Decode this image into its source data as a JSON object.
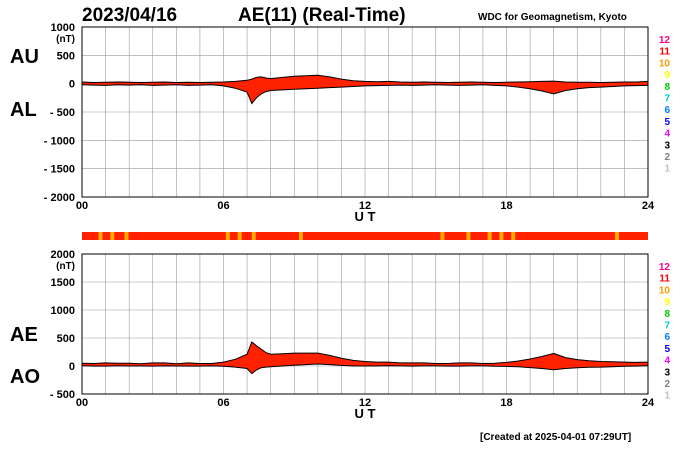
{
  "header": {
    "date": "2023/04/16",
    "title": "AE(11) (Real-Time)",
    "source": "WDC for Geomagnetism, Kyoto"
  },
  "footer": {
    "created": "[Created at 2025-04-01 07:29UT]"
  },
  "colors": {
    "fill": "#ff2200",
    "outline": "#000000",
    "grid": "#9a9a9a",
    "station_scale": [
      "#c0c0c0",
      "#808080",
      "#000000",
      "#ff00ff",
      "#0000ff",
      "#0080ff",
      "#00cccc",
      "#00cc00",
      "#ffff00",
      "#ff9900",
      "#ff0000",
      "#ff0088"
    ],
    "bar_base": "#ff2200",
    "bar_mark": "#ffaa00"
  },
  "station_scale_labels": [
    "12",
    "11",
    "10",
    "9",
    "8",
    "7",
    "6",
    "5",
    "4",
    "3",
    "2",
    "1"
  ],
  "coverage_bar_marks_hours": [
    0.7,
    1.2,
    1.8,
    6.1,
    6.6,
    7.2,
    9.2,
    15.2,
    16.3,
    17.2,
    17.7,
    18.2,
    22.6
  ],
  "chart_data": [
    {
      "type": "area",
      "panel": "upper",
      "unit_label": "(nT)",
      "series_labels": [
        "AU",
        "AL"
      ],
      "xlabel": "U T",
      "xlim": [
        0,
        24
      ],
      "x_ticks": [
        "00",
        "06",
        "12",
        "18",
        "24"
      ],
      "ylim": [
        -2000,
        1000
      ],
      "y_ticks": [
        "1000",
        "500",
        "0",
        "- 500",
        "- 1000",
        "- 1500",
        "- 2000"
      ],
      "grid": true,
      "x": [
        0,
        0.5,
        1,
        1.5,
        2,
        2.5,
        3,
        3.5,
        4,
        4.5,
        5,
        5.5,
        6,
        6.5,
        7,
        7.2,
        7.4,
        7.6,
        7.8,
        8,
        8.5,
        9,
        9.5,
        10,
        10.5,
        11,
        11.5,
        12,
        12.5,
        13,
        13.5,
        14,
        14.5,
        15,
        15.5,
        16,
        16.5,
        17,
        17.5,
        18,
        18.5,
        19,
        19.5,
        20,
        20.5,
        21,
        21.5,
        22,
        22.5,
        23,
        23.5,
        24
      ],
      "AU": [
        30,
        20,
        25,
        30,
        25,
        20,
        25,
        30,
        20,
        25,
        20,
        25,
        30,
        40,
        60,
        80,
        110,
        120,
        100,
        90,
        110,
        130,
        140,
        150,
        120,
        80,
        50,
        40,
        35,
        40,
        30,
        25,
        30,
        25,
        20,
        25,
        30,
        25,
        20,
        25,
        30,
        35,
        40,
        45,
        30,
        25,
        25,
        20,
        25,
        30,
        30,
        40
      ],
      "AL": [
        -20,
        -25,
        -30,
        -20,
        -25,
        -20,
        -30,
        -25,
        -20,
        -30,
        -25,
        -20,
        -40,
        -80,
        -150,
        -350,
        -250,
        -180,
        -140,
        -120,
        -110,
        -100,
        -90,
        -80,
        -70,
        -60,
        -50,
        -40,
        -35,
        -30,
        -25,
        -30,
        -25,
        -20,
        -25,
        -30,
        -25,
        -20,
        -30,
        -40,
        -60,
        -90,
        -130,
        -180,
        -120,
        -90,
        -70,
        -60,
        -50,
        -40,
        -35,
        -30
      ]
    },
    {
      "type": "area",
      "panel": "lower",
      "unit_label": "(nT)",
      "series_labels": [
        "AE",
        "AO"
      ],
      "xlabel": "U T",
      "xlim": [
        0,
        24
      ],
      "x_ticks": [
        "00",
        "06",
        "12",
        "18",
        "24"
      ],
      "ylim": [
        -500,
        2000
      ],
      "y_ticks": [
        "2000",
        "1500",
        "1000",
        "500",
        "0",
        "- 500"
      ],
      "grid": true,
      "x": [
        0,
        0.5,
        1,
        1.5,
        2,
        2.5,
        3,
        3.5,
        4,
        4.5,
        5,
        5.5,
        6,
        6.5,
        7,
        7.2,
        7.4,
        7.6,
        7.8,
        8,
        8.5,
        9,
        9.5,
        10,
        10.5,
        11,
        11.5,
        12,
        12.5,
        13,
        13.5,
        14,
        14.5,
        15,
        15.5,
        16,
        16.5,
        17,
        17.5,
        18,
        18.5,
        19,
        19.5,
        20,
        20.5,
        21,
        21.5,
        22,
        22.5,
        23,
        23.5,
        24
      ],
      "AE": [
        50,
        45,
        55,
        50,
        50,
        40,
        55,
        55,
        40,
        55,
        45,
        45,
        70,
        120,
        210,
        430,
        360,
        300,
        240,
        210,
        220,
        230,
        230,
        230,
        190,
        140,
        100,
        80,
        70,
        70,
        55,
        55,
        55,
        45,
        45,
        55,
        55,
        45,
        50,
        65,
        90,
        125,
        170,
        225,
        150,
        115,
        95,
        80,
        75,
        70,
        65,
        70
      ],
      "AO": [
        5,
        -2,
        -2,
        5,
        0,
        0,
        -2,
        2,
        0,
        -2,
        -2,
        2,
        -5,
        -20,
        -45,
        -135,
        -70,
        -30,
        -20,
        -15,
        0,
        15,
        25,
        35,
        25,
        10,
        0,
        0,
        0,
        5,
        2,
        -2,
        2,
        2,
        -2,
        -2,
        2,
        2,
        -5,
        -8,
        -15,
        -28,
        -45,
        -68,
        -45,
        -32,
        -22,
        -20,
        -12,
        -5,
        -2,
        5
      ]
    }
  ]
}
